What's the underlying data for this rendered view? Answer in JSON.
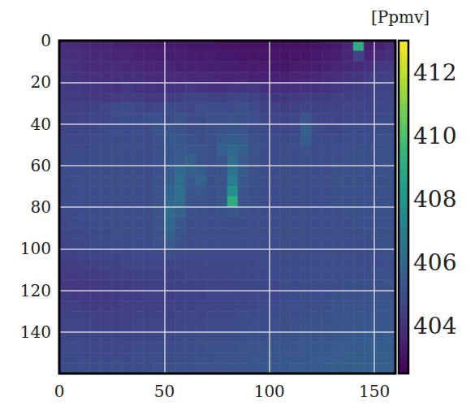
{
  "chart_data": {
    "type": "heatmap",
    "x_bins": [
      0,
      5,
      10,
      15,
      20,
      25,
      30,
      35,
      40,
      45,
      50,
      55,
      60,
      65,
      70,
      75,
      80,
      85,
      90,
      95,
      100,
      105,
      110,
      115,
      120,
      125,
      130,
      135,
      140,
      145,
      150,
      155,
      160
    ],
    "y_bins": [
      0,
      5,
      10,
      15,
      20,
      25,
      30,
      35,
      40,
      45,
      50,
      55,
      60,
      65,
      70,
      75,
      80,
      85,
      90,
      95,
      100,
      105,
      110,
      115,
      120,
      125,
      130,
      135,
      140,
      145,
      150,
      155,
      160
    ],
    "values": [
      [
        403.9,
        403.8,
        403.7,
        403.6,
        403.6,
        403.5,
        403.5,
        403.4,
        403.4,
        403.3,
        403.3,
        403.3,
        403.2,
        403.2,
        403.2,
        403.1,
        403.1,
        403.0,
        403.0,
        403.0,
        403.0,
        403.0,
        403.0,
        403.0,
        403.1,
        403.2,
        403.3,
        403.6,
        409.0,
        403.4,
        403.5,
        403.7
      ],
      [
        404.0,
        403.9,
        403.8,
        403.7,
        403.7,
        403.6,
        403.6,
        403.5,
        403.5,
        403.4,
        403.4,
        403.4,
        403.3,
        403.3,
        403.3,
        403.2,
        403.2,
        403.1,
        403.1,
        403.1,
        403.1,
        403.1,
        403.1,
        403.1,
        403.2,
        403.3,
        403.4,
        403.6,
        404.6,
        403.6,
        403.8,
        404.0
      ],
      [
        404.1,
        404.0,
        403.9,
        403.8,
        403.8,
        403.8,
        403.7,
        403.7,
        403.6,
        403.6,
        403.6,
        403.5,
        403.5,
        403.5,
        403.4,
        403.4,
        403.4,
        403.3,
        403.3,
        403.3,
        403.2,
        403.2,
        403.3,
        403.3,
        403.4,
        403.5,
        403.6,
        403.7,
        403.8,
        404.0,
        404.2,
        404.3
      ],
      [
        404.2,
        404.1,
        404.0,
        404.0,
        403.9,
        403.9,
        403.9,
        403.9,
        403.8,
        403.8,
        403.8,
        403.8,
        403.7,
        403.7,
        403.7,
        403.6,
        403.6,
        403.6,
        403.5,
        403.5,
        403.5,
        403.5,
        403.6,
        403.6,
        403.7,
        403.8,
        403.9,
        404.1,
        404.2,
        404.4,
        404.5,
        404.5
      ],
      [
        404.3,
        404.3,
        404.2,
        404.2,
        404.1,
        404.1,
        404.2,
        404.1,
        404.1,
        404.0,
        404.1,
        404.1,
        404.2,
        404.1,
        404.0,
        404.0,
        404.1,
        404.1,
        404.2,
        404.0,
        403.9,
        403.9,
        403.9,
        404.0,
        404.0,
        404.1,
        404.2,
        404.3,
        404.4,
        404.5,
        404.6,
        404.6
      ],
      [
        404.4,
        404.4,
        404.3,
        404.3,
        404.3,
        404.3,
        404.4,
        404.4,
        404.3,
        404.3,
        404.4,
        404.5,
        404.6,
        404.7,
        404.6,
        404.5,
        404.7,
        404.8,
        404.6,
        404.4,
        404.2,
        404.2,
        404.3,
        404.4,
        404.4,
        404.4,
        404.5,
        404.5,
        404.6,
        404.6,
        404.7,
        404.7
      ],
      [
        404.5,
        404.5,
        404.5,
        404.6,
        404.7,
        404.9,
        404.9,
        404.8,
        404.7,
        404.8,
        404.9,
        404.9,
        404.8,
        405.0,
        405.0,
        404.9,
        405.0,
        405.1,
        404.9,
        404.6,
        404.5,
        404.5,
        404.6,
        404.7,
        404.6,
        404.6,
        404.6,
        404.7,
        404.7,
        404.7,
        404.8,
        404.8
      ],
      [
        404.6,
        404.6,
        404.7,
        404.7,
        404.8,
        404.9,
        405.0,
        404.9,
        405.1,
        405.1,
        405.0,
        405.2,
        405.0,
        404.9,
        405.1,
        405.1,
        405.2,
        405.1,
        405.0,
        404.8,
        404.7,
        404.7,
        404.8,
        405.3,
        404.8,
        404.7,
        404.7,
        404.8,
        404.8,
        404.8,
        404.9,
        404.9
      ],
      [
        404.7,
        404.7,
        404.8,
        404.8,
        404.9,
        405.0,
        404.9,
        405.0,
        405.0,
        405.3,
        405.3,
        405.2,
        405.0,
        405.0,
        405.1,
        405.2,
        405.3,
        405.2,
        405.0,
        404.9,
        404.8,
        404.8,
        404.9,
        405.8,
        404.9,
        404.8,
        404.8,
        404.9,
        404.9,
        404.9,
        405.0,
        405.0
      ],
      [
        404.8,
        404.8,
        404.8,
        404.9,
        404.9,
        404.9,
        405.0,
        405.0,
        405.0,
        405.1,
        405.4,
        405.4,
        405.1,
        405.0,
        405.1,
        405.5,
        405.6,
        405.5,
        405.1,
        405.0,
        404.9,
        404.9,
        405.0,
        405.6,
        404.9,
        404.9,
        404.9,
        405.0,
        405.0,
        405.0,
        405.1,
        405.1
      ],
      [
        404.8,
        404.9,
        404.9,
        404.9,
        405.0,
        405.0,
        405.0,
        405.0,
        405.0,
        405.1,
        405.3,
        405.4,
        405.4,
        405.3,
        405.1,
        405.7,
        406.0,
        405.8,
        405.2,
        405.0,
        405.0,
        405.0,
        405.0,
        405.2,
        405.0,
        405.0,
        405.0,
        405.0,
        405.1,
        405.1,
        405.1,
        405.1
      ],
      [
        404.9,
        404.9,
        404.9,
        405.0,
        405.0,
        405.0,
        405.0,
        405.0,
        405.0,
        405.1,
        405.4,
        405.5,
        405.8,
        405.2,
        405.1,
        405.3,
        406.3,
        405.5,
        405.1,
        405.0,
        405.0,
        405.0,
        405.0,
        405.0,
        405.0,
        405.0,
        405.0,
        405.1,
        405.1,
        405.1,
        405.1,
        405.1
      ],
      [
        404.9,
        404.9,
        405.0,
        405.0,
        405.0,
        405.0,
        405.0,
        405.0,
        405.0,
        405.1,
        405.5,
        406.0,
        405.7,
        405.6,
        405.1,
        405.2,
        406.5,
        405.6,
        405.1,
        405.0,
        405.0,
        405.0,
        405.0,
        405.0,
        405.0,
        405.0,
        405.1,
        405.1,
        405.1,
        405.1,
        405.1,
        405.1
      ],
      [
        404.9,
        405.0,
        405.0,
        405.0,
        405.0,
        405.0,
        405.0,
        405.0,
        405.0,
        405.2,
        405.6,
        406.2,
        405.5,
        405.8,
        405.1,
        405.2,
        407.0,
        405.4,
        405.1,
        405.0,
        405.0,
        405.0,
        405.0,
        405.0,
        405.0,
        405.0,
        405.1,
        405.1,
        405.1,
        405.1,
        405.1,
        405.1
      ],
      [
        404.9,
        405.0,
        405.0,
        405.0,
        405.0,
        405.0,
        405.0,
        405.0,
        405.0,
        405.2,
        405.8,
        406.3,
        405.3,
        405.4,
        405.1,
        405.3,
        407.8,
        405.3,
        405.1,
        405.0,
        405.0,
        405.0,
        405.0,
        405.0,
        405.0,
        405.0,
        405.1,
        405.1,
        405.1,
        405.1,
        405.1,
        405.1
      ],
      [
        404.9,
        405.0,
        405.0,
        405.0,
        405.0,
        405.0,
        405.0,
        405.0,
        405.0,
        405.2,
        406.0,
        406.2,
        405.2,
        405.2,
        405.1,
        405.4,
        409.0,
        405.2,
        405.1,
        405.0,
        405.0,
        405.0,
        405.0,
        405.0,
        405.0,
        405.0,
        405.1,
        405.1,
        405.1,
        405.1,
        405.1,
        405.1
      ],
      [
        404.9,
        404.9,
        405.0,
        405.0,
        405.0,
        405.0,
        405.0,
        405.0,
        405.0,
        405.2,
        406.2,
        405.8,
        405.1,
        405.1,
        405.0,
        405.1,
        405.3,
        405.1,
        405.0,
        405.0,
        405.0,
        405.0,
        405.0,
        405.0,
        405.0,
        405.0,
        405.0,
        405.1,
        405.1,
        405.1,
        405.1,
        405.1
      ],
      [
        404.8,
        404.9,
        404.9,
        405.0,
        405.0,
        405.0,
        405.0,
        405.0,
        405.0,
        405.2,
        406.0,
        405.4,
        405.0,
        405.0,
        405.0,
        405.0,
        405.0,
        405.0,
        405.0,
        405.0,
        405.0,
        405.0,
        405.0,
        405.0,
        405.0,
        405.0,
        405.0,
        405.0,
        405.1,
        405.1,
        405.1,
        405.1
      ],
      [
        404.8,
        404.8,
        404.9,
        404.9,
        404.9,
        405.0,
        405.0,
        405.0,
        405.0,
        405.2,
        405.8,
        405.2,
        405.0,
        405.0,
        405.0,
        405.0,
        405.0,
        405.0,
        405.0,
        405.0,
        405.0,
        405.0,
        405.0,
        405.0,
        405.0,
        405.0,
        405.0,
        405.0,
        405.0,
        405.1,
        405.1,
        405.1
      ],
      [
        404.7,
        404.8,
        404.8,
        404.9,
        404.9,
        404.9,
        404.9,
        405.0,
        405.0,
        405.1,
        405.5,
        405.1,
        405.0,
        405.0,
        405.0,
        405.0,
        405.0,
        405.0,
        405.0,
        405.0,
        405.0,
        405.0,
        405.0,
        405.0,
        405.0,
        405.0,
        405.0,
        405.0,
        405.0,
        405.0,
        405.1,
        405.1
      ],
      [
        404.6,
        404.6,
        404.7,
        404.7,
        404.8,
        404.8,
        404.8,
        404.9,
        404.9,
        404.9,
        405.0,
        404.9,
        404.9,
        404.9,
        404.9,
        404.9,
        404.9,
        404.9,
        404.9,
        404.9,
        405.0,
        405.0,
        405.0,
        405.0,
        405.0,
        405.0,
        405.0,
        405.0,
        405.0,
        405.0,
        405.0,
        405.1
      ],
      [
        404.4,
        404.4,
        404.5,
        404.5,
        404.6,
        404.6,
        404.7,
        404.7,
        404.7,
        404.7,
        404.7,
        404.7,
        404.7,
        404.8,
        404.8,
        404.8,
        404.8,
        404.8,
        404.8,
        404.9,
        404.9,
        404.9,
        404.9,
        404.9,
        405.0,
        405.0,
        405.0,
        405.0,
        405.0,
        405.0,
        405.0,
        405.0
      ],
      [
        404.3,
        404.3,
        404.4,
        404.4,
        404.4,
        404.5,
        404.5,
        404.6,
        404.6,
        404.6,
        404.6,
        404.6,
        404.7,
        404.7,
        404.7,
        404.7,
        404.8,
        404.8,
        404.8,
        404.8,
        404.9,
        404.9,
        404.9,
        404.9,
        405.0,
        405.0,
        405.0,
        405.0,
        405.0,
        405.1,
        405.1,
        405.1
      ],
      [
        404.3,
        404.3,
        404.3,
        404.3,
        404.4,
        404.4,
        404.4,
        404.5,
        404.5,
        404.5,
        404.6,
        404.6,
        404.6,
        404.6,
        404.7,
        404.7,
        404.7,
        404.8,
        404.8,
        404.8,
        404.8,
        404.9,
        404.9,
        404.9,
        405.0,
        405.0,
        405.0,
        405.1,
        405.1,
        405.1,
        405.1,
        405.2
      ],
      [
        404.4,
        404.3,
        404.3,
        404.3,
        404.3,
        404.4,
        404.4,
        404.4,
        404.5,
        404.5,
        404.5,
        404.6,
        404.6,
        404.6,
        404.7,
        404.7,
        404.7,
        404.7,
        404.8,
        404.8,
        404.8,
        404.9,
        404.9,
        405.0,
        405.0,
        405.0,
        405.1,
        405.1,
        405.1,
        405.2,
        405.2,
        405.2
      ],
      [
        404.5,
        404.5,
        404.4,
        404.4,
        404.4,
        404.4,
        404.5,
        404.5,
        404.5,
        404.5,
        404.6,
        404.6,
        404.6,
        404.7,
        404.7,
        404.7,
        404.8,
        404.8,
        404.8,
        404.9,
        404.9,
        404.9,
        405.0,
        405.0,
        405.0,
        405.1,
        405.1,
        405.2,
        405.2,
        405.2,
        405.3,
        405.3
      ],
      [
        404.6,
        404.6,
        404.6,
        404.5,
        404.5,
        404.5,
        404.5,
        404.6,
        404.6,
        404.6,
        404.6,
        404.7,
        404.7,
        404.7,
        404.8,
        404.8,
        404.8,
        404.9,
        404.9,
        404.9,
        405.0,
        405.0,
        405.0,
        405.1,
        405.1,
        405.1,
        405.2,
        405.2,
        405.3,
        405.3,
        405.3,
        405.4
      ],
      [
        404.7,
        404.7,
        404.7,
        404.6,
        404.6,
        404.6,
        404.6,
        404.7,
        404.7,
        404.7,
        404.7,
        404.8,
        404.8,
        404.8,
        404.9,
        404.9,
        404.9,
        405.0,
        405.0,
        405.0,
        405.1,
        405.1,
        405.1,
        405.2,
        405.2,
        405.2,
        405.3,
        405.3,
        405.4,
        405.4,
        405.4,
        405.4
      ],
      [
        404.8,
        404.8,
        404.8,
        404.7,
        404.7,
        404.7,
        404.7,
        404.8,
        404.8,
        404.8,
        404.8,
        404.9,
        404.9,
        404.9,
        405.0,
        405.0,
        405.0,
        405.1,
        405.1,
        405.1,
        405.2,
        405.2,
        405.2,
        405.3,
        405.3,
        405.3,
        405.4,
        405.4,
        405.5,
        405.5,
        405.5,
        405.5
      ],
      [
        404.9,
        404.9,
        404.8,
        404.8,
        404.8,
        404.8,
        404.8,
        404.9,
        404.9,
        404.9,
        404.9,
        405.0,
        405.0,
        405.0,
        405.1,
        405.1,
        405.1,
        405.2,
        405.2,
        405.2,
        405.3,
        405.3,
        405.3,
        405.4,
        405.4,
        405.4,
        405.5,
        405.5,
        405.5,
        405.6,
        405.6,
        405.6
      ],
      [
        404.9,
        404.9,
        404.9,
        404.9,
        404.9,
        404.9,
        404.9,
        405.0,
        405.0,
        405.0,
        405.0,
        405.0,
        405.1,
        405.1,
        405.1,
        405.2,
        405.2,
        405.2,
        405.3,
        405.3,
        405.3,
        405.4,
        405.4,
        405.4,
        405.5,
        405.5,
        405.5,
        405.6,
        405.6,
        405.6,
        405.6,
        405.6
      ],
      [
        405.0,
        405.0,
        405.0,
        405.0,
        405.0,
        405.0,
        405.0,
        405.0,
        405.0,
        405.1,
        405.1,
        405.1,
        405.1,
        405.2,
        405.2,
        405.2,
        405.3,
        405.3,
        405.3,
        405.4,
        405.4,
        405.4,
        405.5,
        405.5,
        405.5,
        405.6,
        405.6,
        405.6,
        405.7,
        405.7,
        405.7,
        405.7
      ]
    ],
    "xlim": [
      0,
      160
    ],
    "ylim": [
      0,
      160
    ],
    "xticks": [
      0,
      50,
      100,
      150
    ],
    "yticks": [
      0,
      20,
      40,
      60,
      80,
      100,
      120,
      140
    ],
    "colorbar": {
      "label": "[Ppmv]",
      "range": [
        402.5,
        413.0
      ],
      "ticks": [
        404,
        406,
        408,
        410,
        412
      ]
    },
    "grid": true
  }
}
